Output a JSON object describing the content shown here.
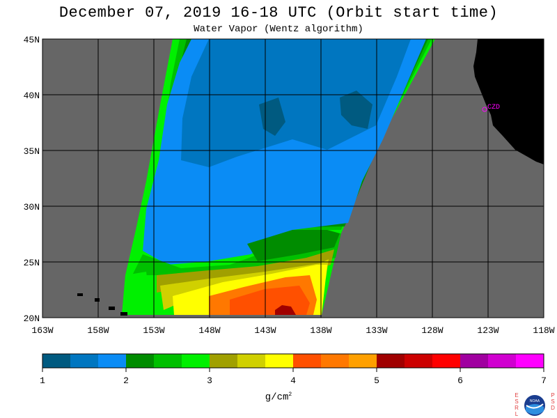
{
  "title": "December 07, 2019  16-18 UTC  (Orbit start time)",
  "subtitle": "Water Vapor (Wentz algorithm)",
  "map": {
    "lat_labels": [
      "45N",
      "40N",
      "35N",
      "30N",
      "25N",
      "20N"
    ],
    "lon_labels": [
      "163W",
      "158W",
      "153W",
      "148W",
      "143W",
      "138W",
      "133W",
      "128W",
      "123W",
      "118W"
    ],
    "station_label": "CZD",
    "colors": {
      "no_data": "#666666",
      "land": "#000000",
      "grid": "#000000",
      "station": "#ff00ff"
    }
  },
  "colorbar": {
    "ticks": [
      "1",
      "2",
      "3",
      "4",
      "5",
      "6",
      "7"
    ],
    "units": "g/cm",
    "units_exp": "2",
    "colors": [
      "#005a80",
      "#0076c0",
      "#0a8cf5",
      "#008c00",
      "#00c000",
      "#00f000",
      "#a0a000",
      "#d0d000",
      "#ffff00",
      "#ff5000",
      "#ff7800",
      "#ffa000",
      "#a00000",
      "#cc0000",
      "#ff0000",
      "#a000a0",
      "#d000d0",
      "#ff00ff"
    ]
  },
  "logo": {
    "left_letters": "ESRL",
    "right_letters": "PSD",
    "center_text": "NOAA"
  },
  "chart_data": {
    "type": "heatmap",
    "title": "December 07, 2019  16-18 UTC  (Orbit start time)",
    "subtitle": "Water Vapor (Wentz algorithm)",
    "xlabel": "",
    "ylabel": "",
    "xlim": [
      -163,
      -118
    ],
    "ylim": [
      20,
      45
    ],
    "x_ticks": [
      "163W",
      "158W",
      "153W",
      "148W",
      "143W",
      "138W",
      "133W",
      "128W",
      "123W",
      "118W"
    ],
    "y_ticks": [
      "20N",
      "25N",
      "30N",
      "35N",
      "40N",
      "45N"
    ],
    "colorbar_range": [
      1,
      7
    ],
    "colorbar_label": "g/cm²",
    "grid": true
  }
}
